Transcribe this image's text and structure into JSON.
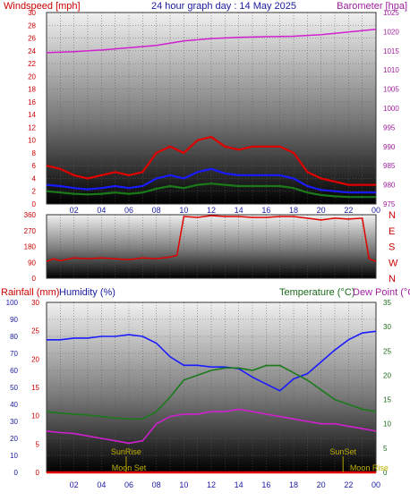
{
  "header": {
    "left_label": "Windspeed [mph]",
    "title": "24 hour graph day : 14 May 2025",
    "right_label": "Barometer [hpa]"
  },
  "colors": {
    "red": "#e00000",
    "blue": "#1a1aff",
    "magenta": "#d020d0",
    "green": "#1a7a1a",
    "olive": "#b0a000"
  },
  "chart_data": [
    {
      "type": "line",
      "name": "wind-barometer",
      "xlabel": "",
      "x_ticks": [
        "02",
        "04",
        "06",
        "08",
        "10",
        "12",
        "14",
        "16",
        "18",
        "20",
        "22",
        "00"
      ],
      "left_axis": {
        "label": "Windspeed [mph]",
        "ylim": [
          0,
          30
        ],
        "ticks": [
          "0",
          "2",
          "4",
          "6",
          "8",
          "10",
          "12",
          "14",
          "16",
          "18",
          "20",
          "22",
          "24",
          "26",
          "28",
          "30"
        ]
      },
      "right_axis": {
        "label": "Barometer [hpa]",
        "ylim": [
          975,
          1025
        ],
        "ticks": [
          "975",
          "980",
          "985",
          "990",
          "995",
          "1000",
          "1005",
          "1010",
          "1015",
          "1020",
          "1025"
        ]
      },
      "series": [
        {
          "color": "#e00000",
          "axis": "left",
          "x": [
            0,
            1,
            2,
            3,
            4,
            5,
            6,
            7,
            8,
            9,
            10,
            11,
            12,
            13,
            14,
            15,
            16,
            17,
            18,
            19,
            20,
            21,
            22,
            23,
            24
          ],
          "y": [
            6,
            5.5,
            4.5,
            4,
            4.5,
            5,
            4.5,
            5,
            8,
            9,
            8,
            10,
            10.5,
            9,
            8.5,
            9,
            9,
            9,
            8,
            5,
            4,
            3.5,
            3,
            3,
            3
          ]
        },
        {
          "color": "#1a1aff",
          "axis": "left",
          "x": [
            0,
            1,
            2,
            3,
            4,
            5,
            6,
            7,
            8,
            9,
            10,
            11,
            12,
            13,
            14,
            15,
            16,
            17,
            18,
            19,
            20,
            21,
            22,
            23,
            24
          ],
          "y": [
            3,
            2.8,
            2.5,
            2.3,
            2.5,
            2.8,
            2.5,
            2.8,
            4,
            4.5,
            4,
            5,
            5.5,
            4.8,
            4.5,
            4.5,
            4.5,
            4.5,
            4,
            2.8,
            2.2,
            2,
            1.8,
            1.8,
            1.8
          ]
        },
        {
          "color": "#1a7a1a",
          "axis": "left",
          "x": [
            0,
            1,
            2,
            3,
            4,
            5,
            6,
            7,
            8,
            9,
            10,
            11,
            12,
            13,
            14,
            15,
            16,
            17,
            18,
            19,
            20,
            21,
            22,
            23,
            24
          ],
          "y": [
            2,
            1.8,
            1.6,
            1.5,
            1.6,
            1.8,
            1.6,
            1.8,
            2.4,
            2.8,
            2.5,
            3,
            3.2,
            3,
            2.8,
            2.8,
            2.8,
            2.8,
            2.5,
            1.8,
            1.4,
            1.2,
            1.1,
            1.1,
            1.1
          ]
        },
        {
          "color": "#d020d0",
          "axis": "right",
          "x": [
            0,
            2,
            4,
            6,
            8,
            10,
            12,
            14,
            16,
            18,
            20,
            22,
            24
          ],
          "y": [
            1014.5,
            1014.8,
            1015.2,
            1015.8,
            1016.4,
            1017.6,
            1018.2,
            1018.5,
            1018.7,
            1018.8,
            1019.2,
            1019.9,
            1020.6
          ]
        }
      ]
    },
    {
      "type": "line",
      "name": "wind-direction",
      "x_ticks": [],
      "left_axis": {
        "ylim": [
          0,
          360
        ],
        "ticks": [
          "0",
          "90",
          "180",
          "270",
          "360"
        ]
      },
      "right_axis": {
        "ticks": [
          "N",
          "W",
          "S",
          "E",
          "N"
        ]
      },
      "series": [
        {
          "color": "#e00000",
          "axis": "left",
          "x": [
            0,
            0.5,
            1,
            2,
            3,
            4,
            5,
            6,
            7,
            8,
            9,
            9.5,
            10,
            11,
            12,
            13,
            14,
            15,
            16,
            17,
            18,
            18.5,
            19,
            20,
            21,
            22,
            23,
            23.5,
            24
          ],
          "y": [
            95,
            110,
            100,
            115,
            110,
            115,
            110,
            105,
            115,
            110,
            120,
            130,
            350,
            345,
            355,
            350,
            350,
            345,
            345,
            350,
            350,
            345,
            340,
            330,
            340,
            335,
            340,
            110,
            95
          ]
        }
      ]
    },
    {
      "type": "line",
      "name": "temp-humidity",
      "x_ticks": [
        "02",
        "04",
        "06",
        "08",
        "10",
        "12",
        "14",
        "16",
        "18",
        "20",
        "22",
        "00"
      ],
      "rain_axis": {
        "label": "Rainfall (mm)",
        "ylim": [
          0,
          30
        ],
        "ticks": [
          "0",
          "5",
          "10",
          "15",
          "20",
          "25",
          "30"
        ]
      },
      "humidity_axis": {
        "label": "Humidity (%)",
        "ylim": [
          0,
          100
        ],
        "ticks": [
          "0",
          "10",
          "20",
          "30",
          "40",
          "50",
          "60",
          "70",
          "80",
          "90",
          "100"
        ]
      },
      "temp_axis": {
        "label": "Temperature (°C)",
        "ylim": [
          0,
          35
        ],
        "ticks": [
          "0",
          "5",
          "10",
          "15",
          "20",
          "25",
          "30",
          "35"
        ]
      },
      "dew_label": "Dew Point (°C",
      "series": [
        {
          "color": "#1a1aff",
          "axis": "humidity",
          "x": [
            0,
            1,
            2,
            3,
            4,
            5,
            6,
            7,
            8,
            9,
            10,
            11,
            12,
            13,
            14,
            15,
            16,
            17,
            18,
            19,
            20,
            21,
            22,
            23,
            24
          ],
          "y": [
            78,
            78,
            79,
            79,
            80,
            80,
            81,
            80,
            76,
            68,
            63,
            63,
            62,
            62,
            61,
            56,
            52,
            48,
            55,
            58,
            65,
            72,
            78,
            82,
            83
          ]
        },
        {
          "color": "#1a7a1a",
          "axis": "temp",
          "x": [
            0,
            1,
            2,
            3,
            4,
            5,
            6,
            7,
            8,
            9,
            10,
            11,
            12,
            13,
            14,
            15,
            16,
            17,
            18,
            19,
            20,
            21,
            22,
            23,
            24
          ],
          "y": [
            12.5,
            12.2,
            12,
            11.8,
            11.5,
            11.2,
            11,
            11,
            12.5,
            15.5,
            19,
            20,
            21,
            21.5,
            21.5,
            21,
            22,
            22,
            20.5,
            19,
            17,
            15,
            14,
            13,
            12.5
          ]
        },
        {
          "color": "#d020d0",
          "axis": "temp",
          "x": [
            0,
            1,
            2,
            3,
            4,
            5,
            6,
            7,
            8,
            9,
            10,
            11,
            12,
            13,
            14,
            15,
            16,
            17,
            18,
            19,
            20,
            21,
            22,
            23,
            24
          ],
          "y": [
            8.5,
            8.2,
            8,
            7.5,
            7,
            6.5,
            6,
            6.5,
            10,
            11.5,
            12,
            12,
            12.5,
            12.5,
            13,
            12.5,
            12,
            11.5,
            11,
            10.5,
            10,
            10,
            9.5,
            9,
            8.5
          ]
        },
        {
          "color": "#e00000",
          "axis": "rain",
          "x": [
            0,
            24
          ],
          "y": [
            0,
            0
          ]
        }
      ],
      "annotations": [
        {
          "text": "SunRise",
          "x": 5.8
        },
        {
          "text": "SunSet",
          "x": 21.6
        },
        {
          "text": "Moon Set",
          "x": 6.0
        },
        {
          "text": "Moon Rise",
          "x": 23.5
        }
      ]
    }
  ]
}
